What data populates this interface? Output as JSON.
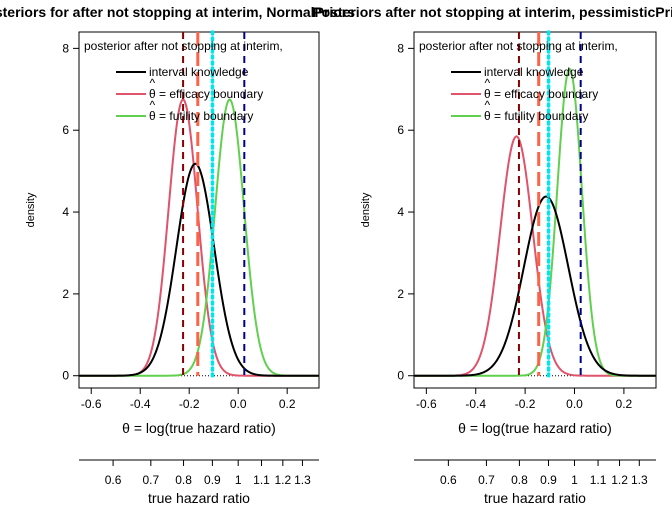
{
  "chart_data": [
    {
      "type": "line",
      "title": "Posteriors for after not stopping at interim, NormalPriors",
      "xlabel": "θ = log(true hazard ratio)",
      "ylabel": "density",
      "xlim": [
        -0.65,
        0.33
      ],
      "ylim": [
        -0.3,
        8.4
      ],
      "xticks": [
        "-0.6",
        "-0.4",
        "-0.2",
        "0.0",
        "0.2"
      ],
      "yticks": [
        "0",
        "2",
        "4",
        "6",
        "8"
      ],
      "legend_title": "posterior after not stopping at interim,",
      "legend_placement": "top-left",
      "series": [
        {
          "name": "interval knowledge",
          "color": "#000000",
          "mean": -0.175,
          "sd": 0.077,
          "peak": 5.18
        },
        {
          "name": "efficacy boundary",
          "color": "#DF536B",
          "mean": -0.225,
          "sd": 0.059,
          "peak": 6.75
        },
        {
          "name": "futility boundary",
          "color": "#61D04F",
          "mean": -0.035,
          "sd": 0.059,
          "peak": 6.75
        }
      ],
      "vlines": [
        {
          "x": -0.225,
          "color": "#8B0000",
          "style": "dashed"
        },
        {
          "x": -0.165,
          "color": "#FF6347",
          "style": "longdash"
        },
        {
          "x": -0.105,
          "color": "#00E5EE",
          "style": "dotted"
        },
        {
          "x": 0.025,
          "color": "#00008B",
          "style": "dashed"
        }
      ],
      "secondary_axis": {
        "label": "true hazard ratio",
        "ticks": [
          "0.6",
          "0.7",
          "0.8",
          "0.9",
          "1",
          "1.1",
          "1.2",
          "1.3"
        ],
        "values": [
          0.6,
          0.7,
          0.8,
          0.9,
          1.0,
          1.1,
          1.2,
          1.3
        ]
      }
    },
    {
      "type": "line",
      "title": "Posteriors after not stopping at interim, pessimisticPriors",
      "xlabel": "θ = log(true hazard ratio)",
      "ylabel": "density",
      "xlim": [
        -0.65,
        0.33
      ],
      "ylim": [
        -0.3,
        8.4
      ],
      "xticks": [
        "-0.6",
        "-0.4",
        "-0.2",
        "0.0",
        "0.2"
      ],
      "yticks": [
        "0",
        "2",
        "4",
        "6",
        "8"
      ],
      "legend_title": "posterior after not stopping at interim,",
      "legend_placement": "top-left",
      "series": [
        {
          "name": "interval knowledge",
          "color": "#000000",
          "mean": -0.115,
          "sd": 0.09,
          "peak": 4.38
        },
        {
          "name": "efficacy boundary",
          "color": "#DF536B",
          "mean": -0.235,
          "sd": 0.066,
          "peak": 5.85
        },
        {
          "name": "futility boundary",
          "color": "#61D04F",
          "mean": -0.02,
          "sd": 0.05,
          "peak": 7.5
        }
      ],
      "vlines": [
        {
          "x": -0.225,
          "color": "#8B0000",
          "style": "dashed"
        },
        {
          "x": -0.145,
          "color": "#FF6347",
          "style": "longdash"
        },
        {
          "x": -0.105,
          "color": "#00E5EE",
          "style": "dotted"
        },
        {
          "x": 0.025,
          "color": "#00008B",
          "style": "dashed"
        }
      ],
      "secondary_axis": {
        "label": "true hazard ratio",
        "ticks": [
          "0.6",
          "0.7",
          "0.8",
          "0.9",
          "1",
          "1.1",
          "1.2",
          "1.3"
        ],
        "values": [
          0.6,
          0.7,
          0.8,
          0.9,
          1.0,
          1.1,
          1.2,
          1.3
        ]
      }
    }
  ]
}
